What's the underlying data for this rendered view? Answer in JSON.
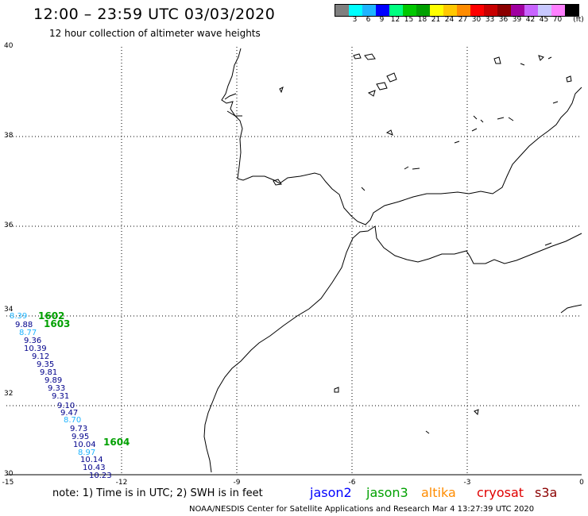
{
  "header": {
    "title": "12:00 – 23:59 UTC 03/03/2020",
    "subtitle": "12 hour collection of altimeter wave heights"
  },
  "legend": {
    "unit": "(ft)",
    "colors": [
      "#808080",
      "#00ffff",
      "#1eb4ff",
      "#0000ff",
      "#00ff80",
      "#00c800",
      "#00a000",
      "#ffff00",
      "#ffc800",
      "#ff8c00",
      "#ff0000",
      "#c80000",
      "#8b0000",
      "#a000a0",
      "#c864ff",
      "#c8c8ff",
      "#ff80ff",
      "#000000"
    ],
    "labels": [
      "3",
      "6",
      "9",
      "12",
      "15",
      "18",
      "21",
      "24",
      "27",
      "30",
      "33",
      "36",
      "39",
      "42",
      "45",
      "70"
    ]
  },
  "map": {
    "lon_range": [
      -15,
      0
    ],
    "lat_range": [
      30,
      40
    ],
    "lat_labels": [
      "40",
      "38",
      "36",
      "34",
      "32",
      "30"
    ],
    "lon_labels": [
      "-15",
      "-12",
      "-9",
      "-6",
      "-3",
      "0"
    ]
  },
  "observations": [
    {
      "text": "8.39",
      "color": "#1eb4ff"
    },
    {
      "text": "1602",
      "color": "#00a000",
      "type": "pass"
    },
    {
      "text": "9.88",
      "color": "#00008b"
    },
    {
      "text": "1603",
      "color": "#00a000",
      "type": "pass"
    },
    {
      "text": "8.77",
      "color": "#1eb4ff"
    },
    {
      "text": "9.36",
      "color": "#00008b"
    },
    {
      "text": "10.39",
      "color": "#00008b"
    },
    {
      "text": "9.12",
      "color": "#00008b"
    },
    {
      "text": "9.35",
      "color": "#00008b"
    },
    {
      "text": "9.81",
      "color": "#00008b"
    },
    {
      "text": "9.89",
      "color": "#00008b"
    },
    {
      "text": "9.33",
      "color": "#00008b"
    },
    {
      "text": "9.31",
      "color": "#00008b"
    },
    {
      "text": "9.10",
      "color": "#00008b"
    },
    {
      "text": "9.47",
      "color": "#00008b"
    },
    {
      "text": "8.70",
      "color": "#1eb4ff"
    },
    {
      "text": "9.73",
      "color": "#00008b"
    },
    {
      "text": "9.95",
      "color": "#00008b"
    },
    {
      "text": "10.04",
      "color": "#00008b"
    },
    {
      "text": "1604",
      "color": "#00a000",
      "type": "pass"
    },
    {
      "text": "8.97",
      "color": "#1eb4ff"
    },
    {
      "text": "10.14",
      "color": "#00008b"
    },
    {
      "text": "10.43",
      "color": "#00008b"
    },
    {
      "text": "10.23",
      "color": "#00008b"
    }
  ],
  "footer": {
    "note": "note:  1) Time is in UTC;  2) SWH is in feet",
    "satellites": [
      {
        "name": "jason2",
        "color": "#0000ff"
      },
      {
        "name": "jason3",
        "color": "#00a000"
      },
      {
        "name": "altika",
        "color": "#ff8c00"
      },
      {
        "name": "cryosat",
        "color": "#e00000"
      },
      {
        "name": "s3a",
        "color": "#8b0000"
      }
    ],
    "credit": "NOAA/NESDIS Center for Satellite Applications and Research    Mar  4 13:27:39 UTC 2020"
  }
}
